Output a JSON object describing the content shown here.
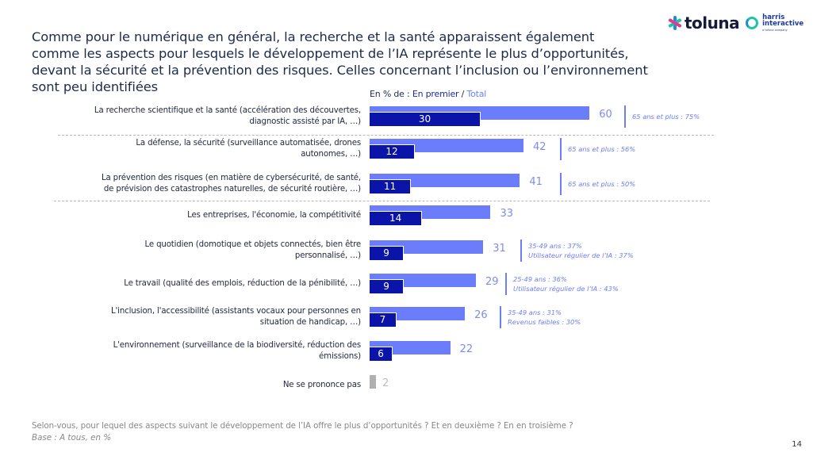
{
  "header": {
    "title_lines": [
      "Comme pour le numérique en général, la recherche et la santé apparaissent également",
      "comme les aspects pour lesquels le développement de l’IA représente le plus d’opportunités,",
      "devant la sécurité et la prévention des risques. Celles concernant l’inclusion ou l’environnement",
      "sont peu identifiées"
    ],
    "logo_primary": "toluna",
    "logo_secondary_line1": "harris",
    "logo_secondary_line2": "interactive",
    "logo_secondary_sub": "a toluna company"
  },
  "colors": {
    "total": "#6b7dfb",
    "premier": "#0a14a8",
    "nsp": "#b0b0b0",
    "note": "#6b7dfb"
  },
  "chart_data": {
    "type": "bar",
    "orientation": "horizontal",
    "title": "Comme pour le numérique en général, la recherche et la santé apparaissent également comme les aspects pour lesquels le développement de l’IA représente le plus d’opportunités, devant la sécurité et la prévention des risques. Celles concernant l’inclusion ou l’environnement sont peu identifiées",
    "legend": {
      "prefix": "En % de : ",
      "premier_label": "En premier",
      "separator": " / ",
      "total_label": "Total",
      "placement": "top"
    },
    "xlabel": "",
    "ylabel": "",
    "xlim": [
      0,
      100
    ],
    "grid": false,
    "categories": [
      "La recherche scientifique et la santé (accélération des découvertes, diagnostic assisté par IA, …)",
      "La défense, la sécurité (surveillance automatisée, drones autonomes, …)",
      "La prévention des risques (en matière de cybersécurité, de santé, de prévision des catastrophes naturelles, de sécurité routière, …)",
      "Les entreprises, l'économie, la compétitivité",
      "Le quotidien (domotique et objets connectés, bien être personnalisé, …)",
      "Le travail (qualité des emplois, réduction de la pénibilité, …)",
      "L'inclusion, l'accessibilité (assistants vocaux pour personnes en situation de handicap, …)",
      "L'environnement (surveillance de la biodiversité, réduction des émissions)",
      "Ne se prononce pas"
    ],
    "category_lines": [
      [
        "La recherche scientifique et la santé (accélération des découvertes,",
        "diagnostic assisté par IA, …)"
      ],
      [
        "La défense, la sécurité (surveillance automatisée, drones",
        "autonomes, …)"
      ],
      [
        "La prévention des risques (en matière de cybersécurité, de santé,",
        "de prévision des catastrophes naturelles, de sécurité routière, …)"
      ],
      [
        "Les entreprises, l'économie, la compétitivité"
      ],
      [
        "Le quotidien (domotique et objets connectés, bien être",
        "personnalisé, …)"
      ],
      [
        "Le travail (qualité des emplois, réduction de la pénibilité, …)"
      ],
      [
        "L'inclusion, l'accessibilité (assistants vocaux pour personnes en",
        "situation de handicap, …)"
      ],
      [
        "L'environnement (surveillance de la biodiversité, réduction des",
        "émissions)"
      ],
      [
        "Ne se prononce pas"
      ]
    ],
    "series": [
      {
        "name": "Total",
        "values": [
          60,
          42,
          41,
          33,
          31,
          29,
          26,
          22,
          2
        ]
      },
      {
        "name": "En premier",
        "values": [
          30,
          12,
          11,
          14,
          9,
          9,
          7,
          6,
          null
        ]
      }
    ],
    "annotations": [
      [
        "65 ans et plus : 75%"
      ],
      [
        "65 ans et plus : 56%"
      ],
      [
        "65 ans et plus : 50%"
      ],
      [],
      [
        "35-49 ans : 37%",
        "Utilisateur régulier de l’IA : 37%"
      ],
      [
        "25-49 ans : 36%",
        "Utilisateur régulier de l’IA : 43%"
      ],
      [
        "35-49 ans : 31%",
        "Revenus faibles : 30%"
      ],
      [],
      []
    ],
    "separators_after": [
      0,
      2
    ]
  },
  "footer": {
    "question": "Selon-vous, pour lequel des aspects suivant le développement de l’IA offre le plus d’opportunités ? Et en deuxième ? En en troisième ?",
    "base": "Base : A tous, en %",
    "page_number": "14"
  }
}
